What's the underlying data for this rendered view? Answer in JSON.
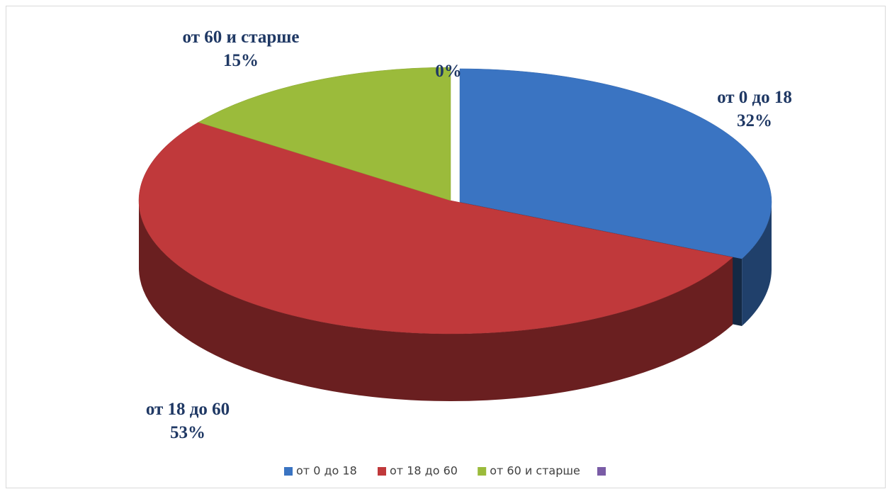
{
  "chart_data": {
    "type": "pie",
    "categories": [
      "от 0 до 18",
      "от 18 до 60",
      "от 60 и старше",
      null
    ],
    "values": [
      32,
      53,
      15,
      0
    ],
    "value_labels": [
      "32%",
      "53%",
      "15%",
      "0%"
    ],
    "colors": [
      "#3a74c2",
      "#c0393b",
      "#9bbb3b",
      "#7a5ca6"
    ],
    "legend": "bottom"
  }
}
